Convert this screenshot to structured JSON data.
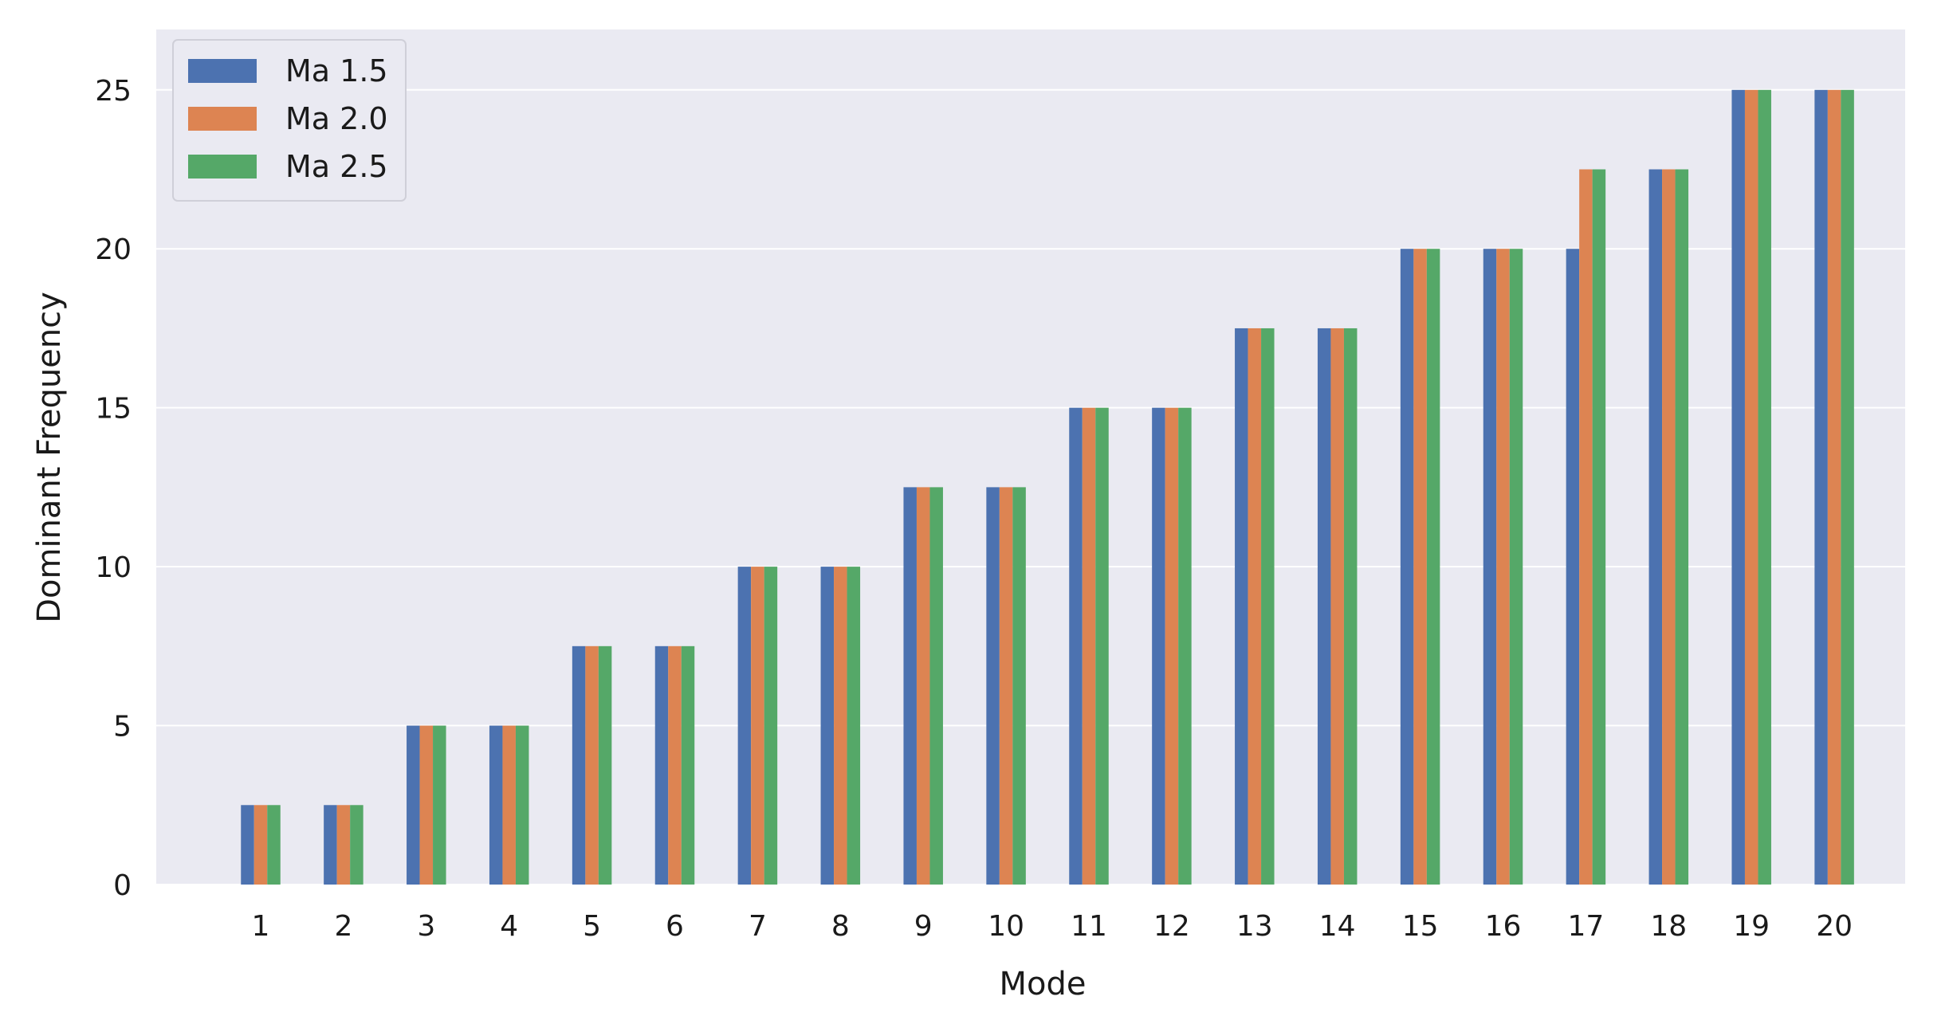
{
  "chart_data": {
    "type": "bar",
    "title": "",
    "xlabel": "Mode",
    "ylabel": "Dominant Frequency",
    "categories": [
      "1",
      "2",
      "3",
      "4",
      "5",
      "6",
      "7",
      "8",
      "9",
      "10",
      "11",
      "12",
      "13",
      "14",
      "15",
      "16",
      "17",
      "18",
      "19",
      "20"
    ],
    "series": [
      {
        "name": "Ma 1.5",
        "color": "#4c72b0",
        "values": [
          2.5,
          2.5,
          5,
          5,
          7.5,
          7.5,
          10,
          10,
          12.5,
          12.5,
          15,
          15,
          17.5,
          17.5,
          20,
          20,
          20,
          22.5,
          25,
          25
        ]
      },
      {
        "name": "Ma 2.0",
        "color": "#dd8452",
        "values": [
          2.5,
          2.5,
          5,
          5,
          7.5,
          7.5,
          10,
          10,
          12.5,
          12.5,
          15,
          15,
          17.5,
          17.5,
          20,
          20,
          22.5,
          22.5,
          25,
          25
        ]
      },
      {
        "name": "Ma 2.5",
        "color": "#55a868",
        "values": [
          2.5,
          2.5,
          5,
          5,
          7.5,
          7.5,
          10,
          10,
          12.5,
          12.5,
          15,
          15,
          17.5,
          17.5,
          20,
          20,
          22.5,
          22.5,
          25,
          25
        ]
      }
    ],
    "yticks": [
      "0",
      "5",
      "10",
      "15",
      "20",
      "25"
    ],
    "ylim": [
      0,
      26.9
    ],
    "grid": true,
    "legend_position": "top-left",
    "colors": {
      "background": "#eaeaf2",
      "grid": "#ffffff"
    }
  }
}
